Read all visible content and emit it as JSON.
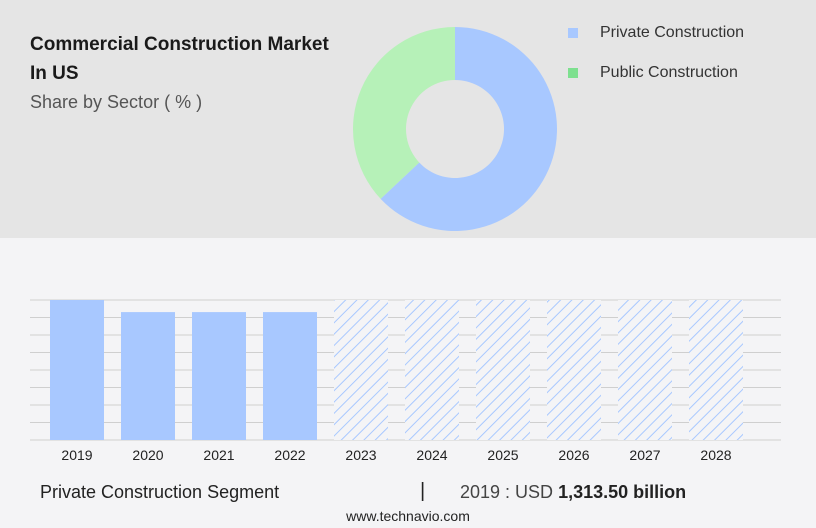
{
  "header": {
    "title": "Commercial Construction Market In US",
    "subtitle": "Share by Sector ( % )"
  },
  "colors": {
    "private": "#a8c8ff",
    "public": "#b6f1b8",
    "private_legend": "#a8c8ff",
    "public_legend": "#7ee08f"
  },
  "chart_data": [
    {
      "type": "pie",
      "title": "Share by Sector ( % )",
      "donut": true,
      "slices": [
        {
          "label": "Private Construction",
          "value": 63
        },
        {
          "label": "Public Construction",
          "value": 37
        }
      ],
      "legend": "top-right"
    },
    {
      "type": "bar",
      "categories": [
        "2019",
        "2020",
        "2021",
        "2022",
        "2023",
        "2024",
        "2025",
        "2026",
        "2027",
        "2028"
      ],
      "values": [
        1313.5,
        1200,
        1200,
        1200,
        1313.5,
        1313.5,
        1313.5,
        1313.5,
        1313.5,
        1313.5
      ],
      "forecast_from": "2023",
      "ylim": [
        0,
        1313.5
      ],
      "grid": true,
      "xlabel": "",
      "ylabel": ""
    }
  ],
  "footer": {
    "segment": "Private Construction Segment",
    "separator": "|",
    "year_label": "2019 : USD",
    "value": "1,313.50 billion",
    "source": "www.technavio.com"
  }
}
